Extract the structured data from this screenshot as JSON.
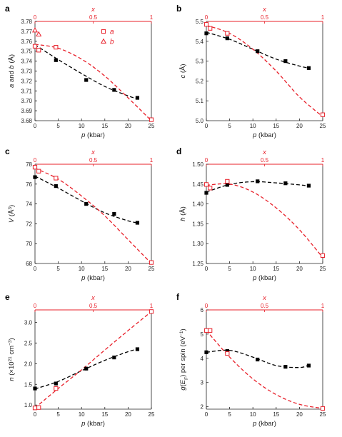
{
  "colors": {
    "red": "#e8202a",
    "black": "#000000",
    "axis": "#222222"
  },
  "chart_data": [
    {
      "panel": "a",
      "type": "scatter",
      "xlabel": "p (kbar)",
      "top_xlabel": "x",
      "ylabel": "a and b (Å)",
      "xlim": [
        0,
        25
      ],
      "ylim": [
        3.68,
        3.78
      ],
      "xticks": [
        "0",
        "5",
        "10",
        "15",
        "20",
        "25"
      ],
      "yticks": [
        "3.68",
        "3.69",
        "3.70",
        "3.71",
        "3.72",
        "3.73",
        "3.74",
        "3.75",
        "3.76",
        "3.77",
        "3.78"
      ],
      "top_ticks": [
        "0",
        "0.5",
        "1"
      ],
      "legend": [
        "a",
        "b"
      ],
      "series": [
        {
          "marker": "filled-square",
          "color": "black",
          "x": [
            0,
            4.5,
            11,
            17,
            22
          ],
          "y": [
            3.755,
            3.741,
            3.721,
            3.711,
            3.703
          ],
          "fit_x": [
            0,
            5,
            10,
            15,
            20,
            22
          ],
          "fit_y": [
            3.7565,
            3.7415,
            3.7275,
            3.7145,
            3.705,
            3.702
          ]
        },
        {
          "name": "a",
          "marker": "open-square",
          "color": "red",
          "x": [
            0,
            0.8,
            4.5,
            25
          ],
          "y": [
            3.755,
            3.751,
            3.754,
            3.681
          ],
          "fit_x": [
            0,
            5,
            10,
            15,
            20,
            25
          ],
          "fit_y": [
            3.757,
            3.753,
            3.742,
            3.725,
            3.703,
            3.68
          ]
        },
        {
          "name": "b",
          "marker": "open-triangle",
          "color": "red",
          "x": [
            0,
            0.8
          ],
          "y": [
            3.771,
            3.767
          ]
        }
      ]
    },
    {
      "panel": "b",
      "type": "scatter",
      "xlabel": "p (kbar)",
      "top_xlabel": "x",
      "ylabel": "c (Å)",
      "xlim": [
        0,
        25
      ],
      "ylim": [
        5.0,
        5.5
      ],
      "xticks": [
        "0",
        "5",
        "10",
        "15",
        "20",
        "25"
      ],
      "yticks": [
        "5.0",
        "5.1",
        "5.2",
        "5.3",
        "5.4",
        "5.5"
      ],
      "top_ticks": [
        "0",
        "0.5",
        "1"
      ],
      "series": [
        {
          "marker": "filled-square",
          "color": "black",
          "x": [
            0,
            4.5,
            11,
            17,
            22
          ],
          "y": [
            5.44,
            5.415,
            5.35,
            5.3,
            5.265
          ],
          "fit_x": [
            0,
            5,
            10,
            15,
            20,
            22
          ],
          "fit_y": [
            5.445,
            5.41,
            5.36,
            5.31,
            5.275,
            5.265
          ]
        },
        {
          "marker": "open-square",
          "color": "red",
          "x": [
            0,
            0.8,
            4.5,
            25
          ],
          "y": [
            5.485,
            5.465,
            5.44,
            5.03
          ],
          "fit_x": [
            0,
            5,
            10,
            15,
            20,
            25
          ],
          "fit_y": [
            5.48,
            5.44,
            5.36,
            5.25,
            5.12,
            5.02
          ]
        }
      ]
    },
    {
      "panel": "c",
      "type": "scatter",
      "xlabel": "p (kbar)",
      "top_xlabel": "x",
      "ylabel": "V (Å³)",
      "xlim": [
        0,
        25
      ],
      "ylim": [
        68,
        78
      ],
      "xticks": [
        "0",
        "5",
        "10",
        "15",
        "20",
        "25"
      ],
      "yticks": [
        "68",
        "70",
        "72",
        "74",
        "76",
        "78"
      ],
      "top_ticks": [
        "0",
        "0.5",
        "1"
      ],
      "series": [
        {
          "marker": "filled-square",
          "color": "black",
          "x": [
            0,
            4.5,
            11,
            17,
            22
          ],
          "y": [
            76.7,
            75.8,
            74.0,
            73.0,
            72.1
          ],
          "fit_x": [
            0,
            5,
            10,
            15,
            20,
            22
          ],
          "fit_y": [
            76.8,
            75.6,
            74.3,
            73.1,
            72.3,
            72.1
          ]
        },
        {
          "marker": "open-square",
          "color": "red",
          "x": [
            0,
            0.8,
            4.5,
            25
          ],
          "y": [
            77.7,
            77.3,
            76.6,
            68.1
          ],
          "fit_x": [
            0,
            5,
            10,
            15,
            20,
            25
          ],
          "fit_y": [
            77.6,
            76.5,
            74.8,
            72.8,
            70.4,
            68.0
          ]
        }
      ]
    },
    {
      "panel": "d",
      "type": "scatter",
      "xlabel": "p (kbar)",
      "top_xlabel": "x",
      "ylabel": "h (Å)",
      "xlim": [
        0,
        25
      ],
      "ylim": [
        1.25,
        1.5
      ],
      "xticks": [
        "0",
        "5",
        "10",
        "15",
        "20",
        "25"
      ],
      "yticks": [
        "1.25",
        "1.30",
        "1.35",
        "1.40",
        "1.45",
        "1.50"
      ],
      "top_ticks": [
        "0",
        "0.5",
        "1"
      ],
      "series": [
        {
          "marker": "filled-square",
          "color": "black",
          "x": [
            0,
            4.5,
            11,
            17,
            22
          ],
          "y": [
            1.428,
            1.448,
            1.457,
            1.452,
            1.446
          ],
          "fit_x": [
            0,
            5,
            10,
            15,
            20,
            22
          ],
          "fit_y": [
            1.43,
            1.449,
            1.456,
            1.453,
            1.448,
            1.445
          ]
        },
        {
          "marker": "open-square",
          "color": "red",
          "x": [
            0,
            0.8,
            4.5,
            25
          ],
          "y": [
            1.449,
            1.44,
            1.457,
            1.27
          ],
          "fit_x": [
            0,
            5,
            10,
            15,
            20,
            25
          ],
          "fit_y": [
            1.447,
            1.45,
            1.43,
            1.39,
            1.335,
            1.265
          ]
        }
      ]
    },
    {
      "panel": "e",
      "type": "scatter",
      "xlabel": "p (kbar)",
      "top_xlabel": "x",
      "ylabel": "n (×10²¹ cm⁻³)",
      "xlim": [
        0,
        25
      ],
      "ylim": [
        0.9,
        3.3
      ],
      "xticks": [
        "0",
        "5",
        "10",
        "15",
        "20",
        "25"
      ],
      "yticks": [
        "1.0",
        "1.5",
        "2.0",
        "2.5",
        "3.0"
      ],
      "top_ticks": [
        "0",
        "0.5",
        "1"
      ],
      "series": [
        {
          "marker": "filled-square",
          "color": "black",
          "x": [
            0,
            4.5,
            11,
            17,
            22
          ],
          "y": [
            1.4,
            1.52,
            1.88,
            2.15,
            2.35
          ],
          "fit_x": [
            0,
            5,
            10,
            15,
            20,
            22
          ],
          "fit_y": [
            1.39,
            1.57,
            1.83,
            2.08,
            2.29,
            2.35
          ]
        },
        {
          "marker": "open-square",
          "color": "red",
          "x": [
            0,
            0.8,
            4.5,
            25
          ],
          "y": [
            0.93,
            0.94,
            1.4,
            3.26
          ],
          "fit_x": [
            0,
            5,
            10,
            15,
            20,
            25
          ],
          "fit_y": [
            0.93,
            1.4,
            1.85,
            2.33,
            2.8,
            3.26
          ]
        }
      ]
    },
    {
      "panel": "f",
      "type": "scatter",
      "xlabel": "p (kbar)",
      "top_xlabel": "x",
      "ylabel": "g(E_F) per spin (eV⁻¹)",
      "xlim": [
        0,
        25
      ],
      "ylim": [
        1.9,
        6.0
      ],
      "xticks": [
        "0",
        "5",
        "10",
        "15",
        "20",
        "25"
      ],
      "yticks": [
        "2",
        "3",
        "4",
        "5",
        "6"
      ],
      "top_ticks": [
        "0",
        "0.5",
        "1"
      ],
      "series": [
        {
          "marker": "filled-square",
          "color": "black",
          "x": [
            0,
            4.5,
            11,
            17,
            22
          ],
          "y": [
            4.25,
            4.3,
            3.95,
            3.65,
            3.7
          ],
          "fit_x": [
            0,
            5,
            10,
            15,
            20,
            22
          ],
          "fit_y": [
            4.25,
            4.33,
            4.05,
            3.7,
            3.62,
            3.72
          ]
        },
        {
          "marker": "open-square",
          "color": "red",
          "x": [
            0,
            0.8,
            4.5,
            25
          ],
          "y": [
            5.15,
            5.15,
            4.2,
            1.93
          ],
          "fit_x": [
            0,
            5,
            10,
            15,
            20,
            25
          ],
          "fit_y": [
            5.15,
            4.05,
            3.15,
            2.5,
            2.1,
            1.93
          ]
        }
      ]
    }
  ]
}
